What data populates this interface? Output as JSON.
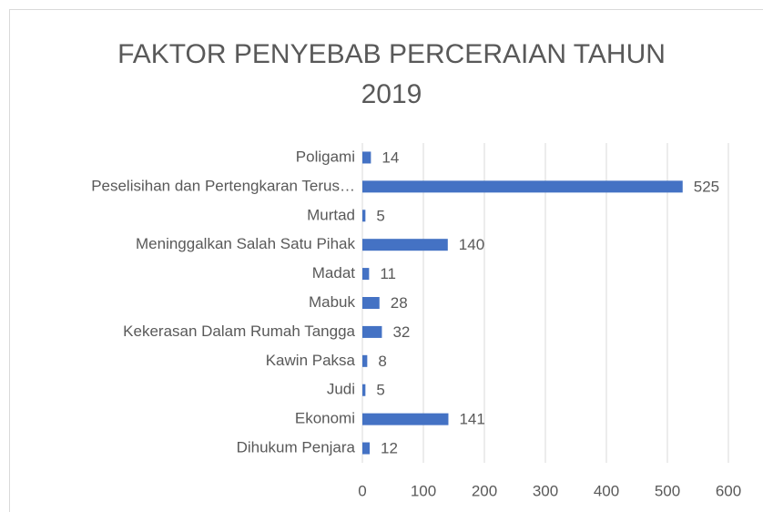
{
  "chart_data": {
    "type": "bar",
    "orientation": "horizontal",
    "title": "FAKTOR PENYEBAB PERCERAIAN TAHUN 2019",
    "categories": [
      "Poligami",
      "Peselisihan dan Pertengkaran Terus…",
      "Murtad",
      "Meninggalkan Salah Satu Pihak",
      "Madat",
      "Mabuk",
      "Kekerasan Dalam Rumah Tangga",
      "Kawin Paksa",
      "Judi",
      "Ekonomi",
      "Dihukum Penjara"
    ],
    "values": [
      14,
      525,
      5,
      140,
      11,
      28,
      32,
      8,
      5,
      141,
      12
    ],
    "color": "#4472c4",
    "xlim": [
      0,
      600
    ],
    "xticks": [
      0,
      100,
      200,
      300,
      400,
      500,
      600
    ],
    "grid": true
  }
}
